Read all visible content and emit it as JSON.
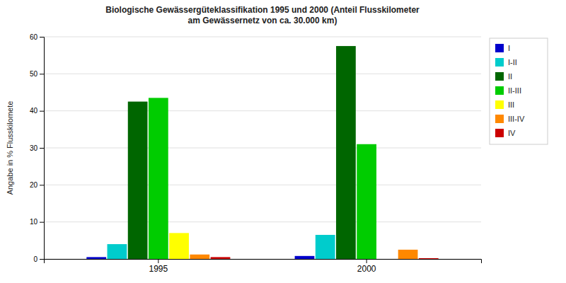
{
  "chart_data": {
    "type": "bar",
    "title": "Biologische Gewässergüteklassifikation 1995 und 2000 (Anteil Flusskilometer\nam Gewässernetz von ca. 30.000 km)",
    "y_label": "Angabe in % Flusskilomete",
    "categories": [
      "1995",
      "2000"
    ],
    "series": [
      {
        "name": "I",
        "color": "#0000CC",
        "values": [
          0.5,
          0.8
        ]
      },
      {
        "name": "I-II",
        "color": "#00CCCC",
        "values": [
          4.0,
          6.5
        ]
      },
      {
        "name": "II",
        "color": "#006600",
        "values": [
          42.5,
          57.5
        ]
      },
      {
        "name": "II-III",
        "color": "#00CC00",
        "values": [
          43.5,
          31.0
        ]
      },
      {
        "name": "III",
        "color": "#FFFF00",
        "values": [
          7.0,
          0.0
        ]
      },
      {
        "name": "III-IV",
        "color": "#FF8800",
        "values": [
          1.2,
          2.5
        ]
      },
      {
        "name": "IV",
        "color": "#CC0000",
        "values": [
          0.5,
          0.2
        ]
      }
    ],
    "ylim": [
      0,
      60
    ],
    "yticks": [
      0,
      10,
      20,
      30,
      40,
      50,
      60
    ],
    "grid": true,
    "legend": "right"
  }
}
